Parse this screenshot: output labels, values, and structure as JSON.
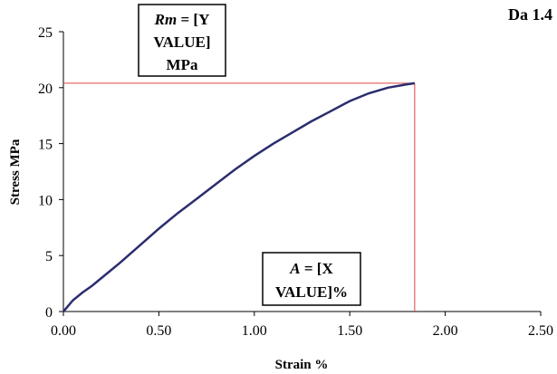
{
  "chart_data": {
    "type": "line",
    "title": "",
    "corner_label": "Da 1.4",
    "xlabel": "Strain %",
    "ylabel": "Stress  MPa",
    "xlim": [
      0,
      2.5
    ],
    "ylim": [
      0,
      25
    ],
    "x_ticks": [
      "0.00",
      "0.50",
      "1.00",
      "1.50",
      "2.00",
      "2.50"
    ],
    "y_ticks": [
      "0",
      "5",
      "10",
      "15",
      "20",
      "25"
    ],
    "grid": false,
    "series": [
      {
        "x": [
          0.0,
          0.02,
          0.05,
          0.1,
          0.15,
          0.2,
          0.3,
          0.4,
          0.5,
          0.6,
          0.7,
          0.8,
          0.9,
          1.0,
          1.1,
          1.2,
          1.3,
          1.4,
          1.5,
          1.6,
          1.7,
          1.8,
          1.84
        ],
        "y": [
          0.0,
          0.4,
          1.0,
          1.7,
          2.3,
          3.0,
          4.4,
          5.9,
          7.4,
          8.8,
          10.1,
          11.4,
          12.7,
          13.9,
          15.0,
          16.0,
          17.0,
          17.9,
          18.8,
          19.5,
          20.0,
          20.3,
          20.4
        ],
        "color": "#2b2d6e"
      }
    ],
    "reference_point": {
      "x": 1.84,
      "y": 20.4,
      "color": "#e04040"
    },
    "annotations": [
      {
        "name": "rm-box",
        "lines": [
          {
            "italic": "Rm",
            "rest": " = [Y"
          },
          {
            "italic": "",
            "rest": "VALUE]"
          },
          {
            "italic": "",
            "rest": "MPa"
          }
        ]
      },
      {
        "name": "a-box",
        "lines": [
          {
            "italic": "A",
            "rest": " = [X"
          },
          {
            "italic": "",
            "rest": "VALUE]%"
          }
        ]
      }
    ]
  }
}
